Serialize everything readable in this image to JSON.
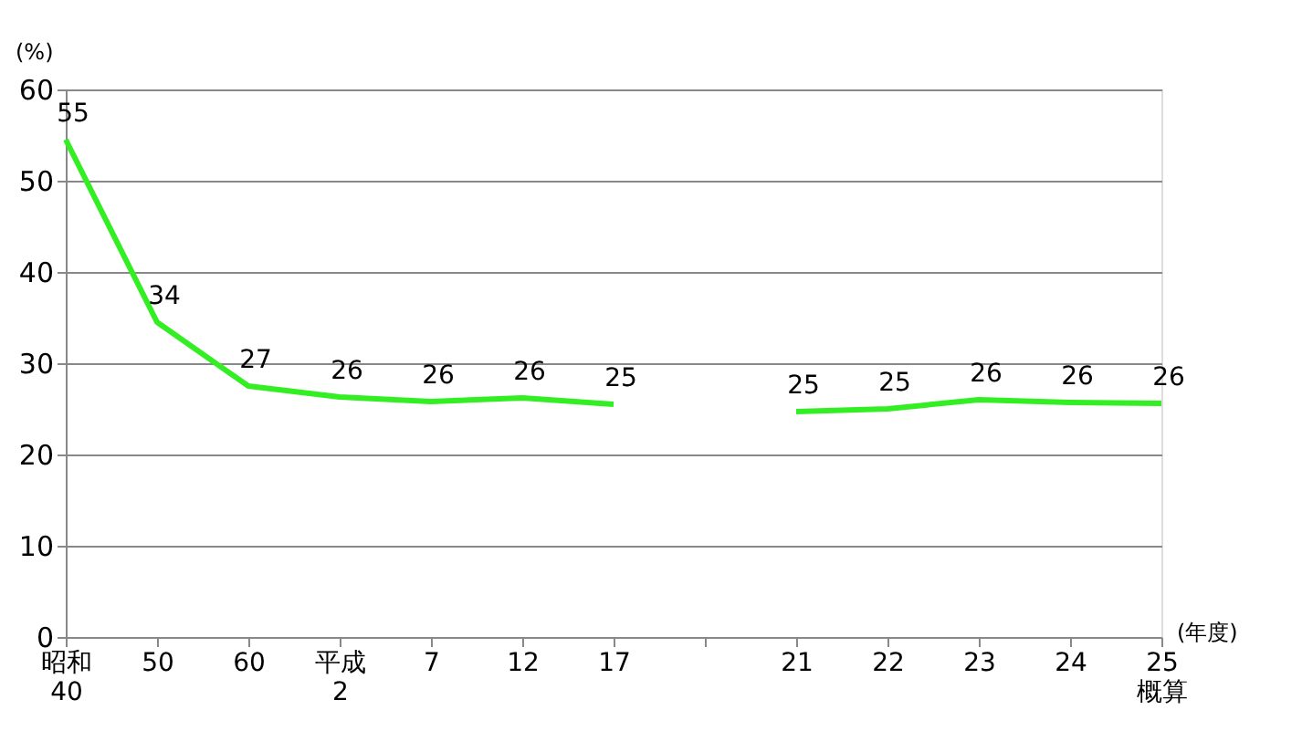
{
  "chart_data": {
    "type": "line",
    "ylabel": "(%)",
    "xlabel": "(年度)",
    "categories": [
      "昭和\n40",
      "50",
      "60",
      "平成\n2",
      "7",
      "12",
      "17",
      null,
      "21",
      "22",
      "23",
      "24",
      "25\n概算"
    ],
    "series": [
      {
        "color": "#33ee22",
        "values": [
          54.5,
          34.5,
          27.5,
          26.3,
          25.8,
          26.2,
          25.5,
          null,
          24.7,
          25.0,
          26.0,
          25.7,
          25.6
        ],
        "value_labels": [
          "55",
          "34",
          "27",
          "26",
          "26",
          "26",
          "25",
          null,
          "25",
          "25",
          "26",
          "26",
          "26"
        ]
      }
    ],
    "ylim": [
      0,
      60
    ],
    "yticks": [
      0,
      10,
      20,
      30,
      40,
      50,
      60
    ],
    "grid": "y",
    "marker": "none",
    "line_style": "solid"
  }
}
